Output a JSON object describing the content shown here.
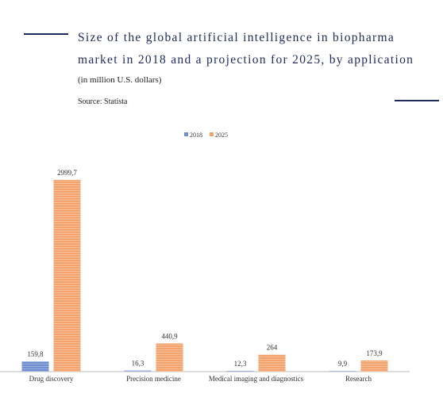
{
  "chart_data": {
    "type": "bar",
    "title": "Size of the global artificial intelligence in biopharma market in 2018 and a projection for 2025, by application",
    "subtitle": "(in million U.S. dollars)",
    "source": "Source: Statista",
    "categories": [
      "Drug discovery",
      "Precision medicine",
      "Medical imaging and diagnostics",
      "Research"
    ],
    "series": [
      {
        "name": "2018",
        "color": "#6f8fd0",
        "values": [
          159.8,
          16.3,
          12.3,
          9.9
        ],
        "value_labels": [
          "159,8",
          "16,3",
          "12,3",
          "9,9"
        ]
      },
      {
        "name": "2025",
        "color": "#f4a36c",
        "values": [
          2999.7,
          440.9,
          264,
          173.9
        ],
        "value_labels": [
          "2999,7",
          "440,9",
          "264",
          "173,9"
        ]
      }
    ],
    "legend": "top"
  }
}
